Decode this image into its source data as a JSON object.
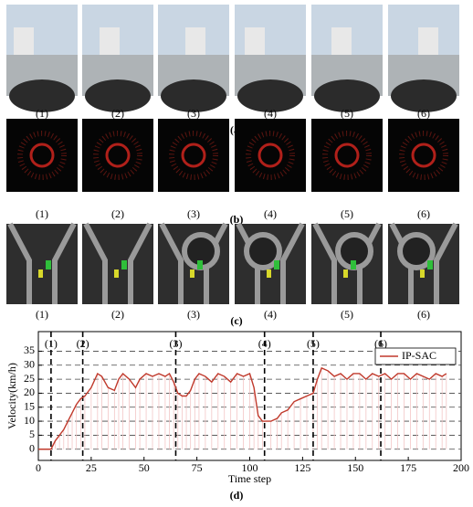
{
  "panels": [
    {
      "caption": "(a)",
      "labels": [
        "(1)",
        "(2)",
        "(3)",
        "(4)",
        "(5)",
        "(6)"
      ]
    },
    {
      "caption": "(b)",
      "labels": [
        "(1)",
        "(2)",
        "(3)",
        "(4)",
        "(5)",
        "(6)"
      ]
    },
    {
      "caption": "(c)",
      "labels": [
        "(1)",
        "(2)",
        "(3)",
        "(4)",
        "(5)",
        "(6)"
      ]
    }
  ],
  "chart_data": {
    "type": "line",
    "caption": "(d)",
    "xlabel": "Time step",
    "ylabel": "Velocity(km/h)",
    "x": [
      0,
      2,
      4,
      6,
      8,
      10,
      12,
      14,
      16,
      18,
      20,
      22,
      25,
      28,
      30,
      33,
      36,
      38,
      40,
      43,
      46,
      48,
      51,
      54,
      57,
      60,
      62,
      64,
      66,
      68,
      70,
      72,
      74,
      76,
      79,
      82,
      85,
      88,
      91,
      94,
      97,
      100,
      102,
      104,
      106,
      110,
      113,
      115,
      118,
      121,
      124,
      127,
      130,
      132,
      134,
      137,
      140,
      143,
      146,
      149,
      152,
      155,
      158,
      161,
      164,
      167,
      170,
      173,
      176,
      179,
      182,
      185,
      188,
      191,
      193
    ],
    "series": [
      {
        "name": "IP-SAC",
        "color": "#c0392b",
        "values": [
          0,
          0,
          0,
          0,
          3,
          5,
          7,
          10,
          13,
          16,
          18,
          19,
          22,
          27,
          26,
          22,
          21,
          25,
          27,
          25,
          22,
          25,
          27,
          26,
          27,
          26,
          27,
          24,
          20,
          19,
          19,
          21,
          25,
          27,
          26,
          24,
          27,
          26,
          24,
          27,
          26,
          27,
          22,
          12,
          10,
          10,
          11,
          13,
          14,
          17,
          18,
          19,
          20,
          25,
          29,
          28,
          26,
          27,
          25,
          27,
          27,
          25,
          27,
          26,
          27,
          25,
          27,
          27,
          25,
          27,
          26,
          25,
          27,
          26,
          27
        ]
      }
    ],
    "markers": [
      {
        "x": 6,
        "label": "(1)"
      },
      {
        "x": 21,
        "label": "(2)"
      },
      {
        "x": 65,
        "label": "(3)"
      },
      {
        "x": 107,
        "label": "(4)"
      },
      {
        "x": 130,
        "label": "(5)"
      },
      {
        "x": 162,
        "label": "(6)"
      }
    ],
    "xlim": [
      0,
      200
    ],
    "ylim": [
      -4,
      42
    ],
    "xticks": [
      0,
      25,
      50,
      75,
      100,
      125,
      150,
      175,
      200
    ],
    "yticks": [
      0,
      5,
      10,
      15,
      20,
      25,
      30,
      35
    ],
    "grid": true,
    "legend": "upper right"
  }
}
